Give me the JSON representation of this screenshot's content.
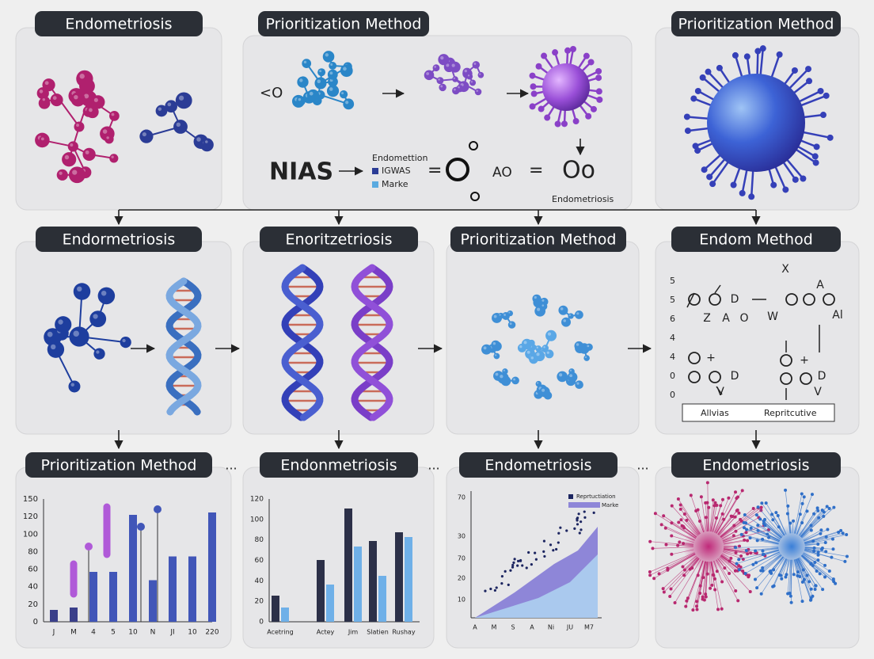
{
  "panels": [
    {
      "title": "Endometriosis"
    },
    {
      "title": "Prioritization Method"
    },
    {
      "title": "Prioritization Method"
    },
    {
      "title": "Endormetriosis"
    },
    {
      "title": "Enoritzetriosis"
    },
    {
      "title": "Prioritization Method"
    },
    {
      "title": "Endom Method"
    },
    {
      "title": "Prioritization Method"
    },
    {
      "title": "Endonmetriosis"
    },
    {
      "title": "Endometriosis"
    },
    {
      "title": "Endometriosis"
    }
  ],
  "workflow": {
    "input": "<O",
    "source": "NIAS",
    "legend": [
      "Endomettion",
      "IGWAS",
      "Marke"
    ],
    "equals": [
      "=",
      "="
    ],
    "mid": "AO",
    "result": "Oo",
    "caption": "Endometriosis"
  },
  "method_diagram": {
    "y_labels": [
      "5",
      "5",
      "6",
      "4",
      "4",
      "0",
      "0"
    ],
    "symbols": [
      "X",
      "Z",
      "A",
      "O",
      "D",
      "W",
      "A",
      "Al",
      "+",
      "D",
      "V",
      "+",
      "D",
      "V"
    ],
    "boxes": [
      "Allvias",
      "Repritcutive"
    ]
  },
  "charts": [
    {
      "y_labels": [
        "150",
        "120",
        "100",
        "80",
        "60",
        "40",
        "20",
        "0"
      ],
      "x_labels": [
        "J",
        "M",
        "4",
        "5",
        "10",
        "N",
        "JI",
        "10",
        "220"
      ]
    },
    {
      "y_labels": [
        "120",
        "100",
        "80",
        "60",
        "40",
        "20",
        "0"
      ],
      "x_labels": [
        "Acetring",
        "Actey",
        "Jim",
        "Slatien",
        "Rushay"
      ]
    },
    {
      "y_labels": [
        "70",
        "30",
        "70",
        "20",
        "10"
      ],
      "x_labels": [
        "A",
        "M",
        "S",
        "A",
        "Ni",
        "JU",
        "M7"
      ],
      "legend": [
        "Reprtuctiation",
        "Marke"
      ]
    }
  ],
  "separators": [
    "...",
    "...",
    "..."
  ]
}
